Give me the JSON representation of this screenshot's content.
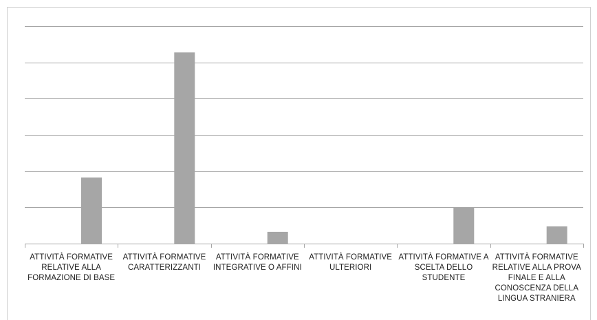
{
  "chart_data": {
    "type": "bar",
    "title": "",
    "xlabel": "",
    "ylabel": "",
    "categories": [
      "ATTIVITÀ FORMATIVE RELATIVE ALLA FORMAZIONE DI BASE",
      "ATTIVITÀ FORMATIVE CARATTERIZZANTI",
      "ATTIVITÀ FORMATIVE INTEGRATIVE O AFFINI",
      "ATTIVITÀ FORMATIVE ULTERIORI",
      "ATTIVITÀ FORMATIVE A SCELTA DELLO STUDENTE",
      "ATTIVITÀ FORMATIVE RELATIVE ALLA PROVA FINALE E ALLA CONOSCENZA DELLA LINGUA STRANIERA"
    ],
    "values": [
      36.5,
      105.5,
      6.5,
      0,
      20,
      9.5
    ],
    "ylim": [
      0,
      120
    ],
    "y_gridlines": [
      20,
      40,
      60,
      80,
      100,
      120
    ],
    "grid": true,
    "legend": "none",
    "colors": {
      "bar": "#a6a6a6",
      "gridline": "#a6a6a6",
      "axis": "#a6a6a6"
    }
  }
}
